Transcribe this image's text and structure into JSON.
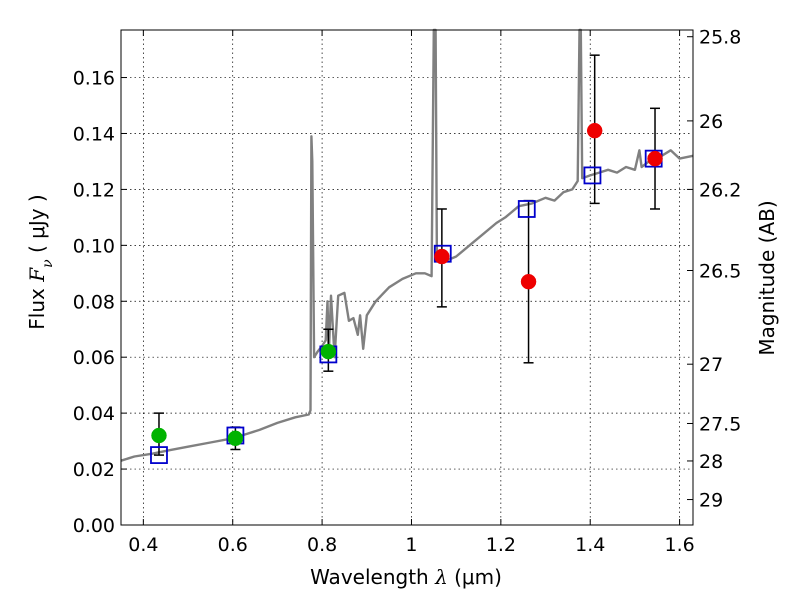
{
  "chart_data": {
    "type": "scatter",
    "xlabel": {
      "prefix": "Wavelength  ",
      "symbol": "λ",
      "unit": " (μm)"
    },
    "ylabel": {
      "prefix": "Flux  ",
      "symbol": "F",
      "subscript": "ν",
      "unit": "  ( μJy )"
    },
    "y2label": "Magnitude (AB)",
    "xlim": [
      0.35,
      1.63
    ],
    "ylim": [
      0.0,
      0.177
    ],
    "grid": true,
    "x_ticks": [
      {
        "value": 0.4,
        "label": "0.4"
      },
      {
        "value": 0.6,
        "label": "0.6"
      },
      {
        "value": 0.8,
        "label": "0.8"
      },
      {
        "value": 1.0,
        "label": "1"
      },
      {
        "value": 1.2,
        "label": "1.2"
      },
      {
        "value": 1.4,
        "label": "1.4"
      },
      {
        "value": 1.6,
        "label": "1.6"
      }
    ],
    "y_ticks": [
      {
        "value": 0.0,
        "label": "0.00"
      },
      {
        "value": 0.02,
        "label": "0.02"
      },
      {
        "value": 0.04,
        "label": "0.04"
      },
      {
        "value": 0.06,
        "label": "0.06"
      },
      {
        "value": 0.08,
        "label": "0.08"
      },
      {
        "value": 0.1,
        "label": "0.10"
      },
      {
        "value": 0.12,
        "label": "0.12"
      },
      {
        "value": 0.14,
        "label": "0.14"
      },
      {
        "value": 0.16,
        "label": "0.16"
      }
    ],
    "y2_ticks": [
      {
        "flux": 0.1746,
        "label": "25.8"
      },
      {
        "flux": 0.1445,
        "label": "26"
      },
      {
        "flux": 0.12,
        "label": "26.2"
      },
      {
        "flux": 0.091,
        "label": "26.5"
      },
      {
        "flux": 0.0575,
        "label": "27"
      },
      {
        "flux": 0.0363,
        "label": "27.5"
      },
      {
        "flux": 0.0229,
        "label": "28"
      },
      {
        "flux": 0.0091,
        "label": "29"
      }
    ],
    "series": [
      {
        "role": "model_spectrum",
        "kind": "line",
        "color": "#808080",
        "points": [
          [
            0.35,
            0.023
          ],
          [
            0.38,
            0.0245
          ],
          [
            0.42,
            0.0255
          ],
          [
            0.46,
            0.0268
          ],
          [
            0.5,
            0.028
          ],
          [
            0.55,
            0.0295
          ],
          [
            0.6,
            0.031
          ],
          [
            0.63,
            0.0325
          ],
          [
            0.66,
            0.034
          ],
          [
            0.7,
            0.0365
          ],
          [
            0.74,
            0.0385
          ],
          [
            0.77,
            0.0395
          ],
          [
            0.774,
            0.041
          ],
          [
            0.776,
            0.139
          ],
          [
            0.778,
            0.13
          ],
          [
            0.782,
            0.06
          ],
          [
            0.79,
            0.062
          ],
          [
            0.8,
            0.064
          ],
          [
            0.808,
            0.066
          ],
          [
            0.812,
            0.08
          ],
          [
            0.815,
            0.061
          ],
          [
            0.82,
            0.082
          ],
          [
            0.828,
            0.06
          ],
          [
            0.836,
            0.082
          ],
          [
            0.85,
            0.083
          ],
          [
            0.86,
            0.073
          ],
          [
            0.87,
            0.074
          ],
          [
            0.88,
            0.068
          ],
          [
            0.885,
            0.075
          ],
          [
            0.892,
            0.063
          ],
          [
            0.9,
            0.075
          ],
          [
            0.92,
            0.08
          ],
          [
            0.95,
            0.085
          ],
          [
            0.98,
            0.088
          ],
          [
            1.01,
            0.09
          ],
          [
            1.03,
            0.09
          ],
          [
            1.045,
            0.089
          ],
          [
            1.05,
            0.177
          ],
          [
            1.054,
            0.177
          ],
          [
            1.057,
            0.095
          ],
          [
            1.07,
            0.094
          ],
          [
            1.1,
            0.096
          ],
          [
            1.13,
            0.1
          ],
          [
            1.16,
            0.104
          ],
          [
            1.19,
            0.108
          ],
          [
            1.21,
            0.11
          ],
          [
            1.24,
            0.114
          ],
          [
            1.27,
            0.115
          ],
          [
            1.3,
            0.117
          ],
          [
            1.32,
            0.116
          ],
          [
            1.34,
            0.119
          ],
          [
            1.36,
            0.12
          ],
          [
            1.372,
            0.123
          ],
          [
            1.376,
            0.177
          ],
          [
            1.379,
            0.177
          ],
          [
            1.382,
            0.124
          ],
          [
            1.4,
            0.125
          ],
          [
            1.42,
            0.126
          ],
          [
            1.44,
            0.127
          ],
          [
            1.46,
            0.126
          ],
          [
            1.48,
            0.128
          ],
          [
            1.5,
            0.127
          ],
          [
            1.51,
            0.134
          ],
          [
            1.515,
            0.128
          ],
          [
            1.54,
            0.131
          ],
          [
            1.56,
            0.132
          ],
          [
            1.58,
            0.134
          ],
          [
            1.6,
            0.131
          ],
          [
            1.63,
            0.132
          ]
        ]
      },
      {
        "role": "model_photometry",
        "kind": "open_square",
        "color": "#0000cc",
        "points": [
          [
            0.435,
            0.025
          ],
          [
            0.606,
            0.032
          ],
          [
            0.814,
            0.061
          ],
          [
            1.07,
            0.097
          ],
          [
            1.258,
            0.113
          ],
          [
            1.405,
            0.125
          ],
          [
            1.542,
            0.131
          ]
        ]
      },
      {
        "role": "photometry_optical",
        "kind": "filled_circle",
        "color": "#00b300",
        "points": [
          {
            "x": 0.435,
            "y": 0.032,
            "err_lo": 0.025,
            "err_hi": 0.04
          },
          {
            "x": 0.606,
            "y": 0.031,
            "err_lo": 0.027,
            "err_hi": 0.035
          },
          {
            "x": 0.814,
            "y": 0.062,
            "err_lo": 0.055,
            "err_hi": 0.07
          }
        ]
      },
      {
        "role": "photometry_nir",
        "kind": "filled_circle",
        "color": "#ee0000",
        "points": [
          {
            "x": 1.068,
            "y": 0.096,
            "err_lo": 0.078,
            "err_hi": 0.113
          },
          {
            "x": 1.262,
            "y": 0.087,
            "err_lo": 0.058,
            "err_hi": 0.116
          },
          {
            "x": 1.41,
            "y": 0.141,
            "err_lo": 0.115,
            "err_hi": 0.168
          },
          {
            "x": 1.545,
            "y": 0.131,
            "err_lo": 0.113,
            "err_hi": 0.149
          }
        ]
      }
    ]
  }
}
